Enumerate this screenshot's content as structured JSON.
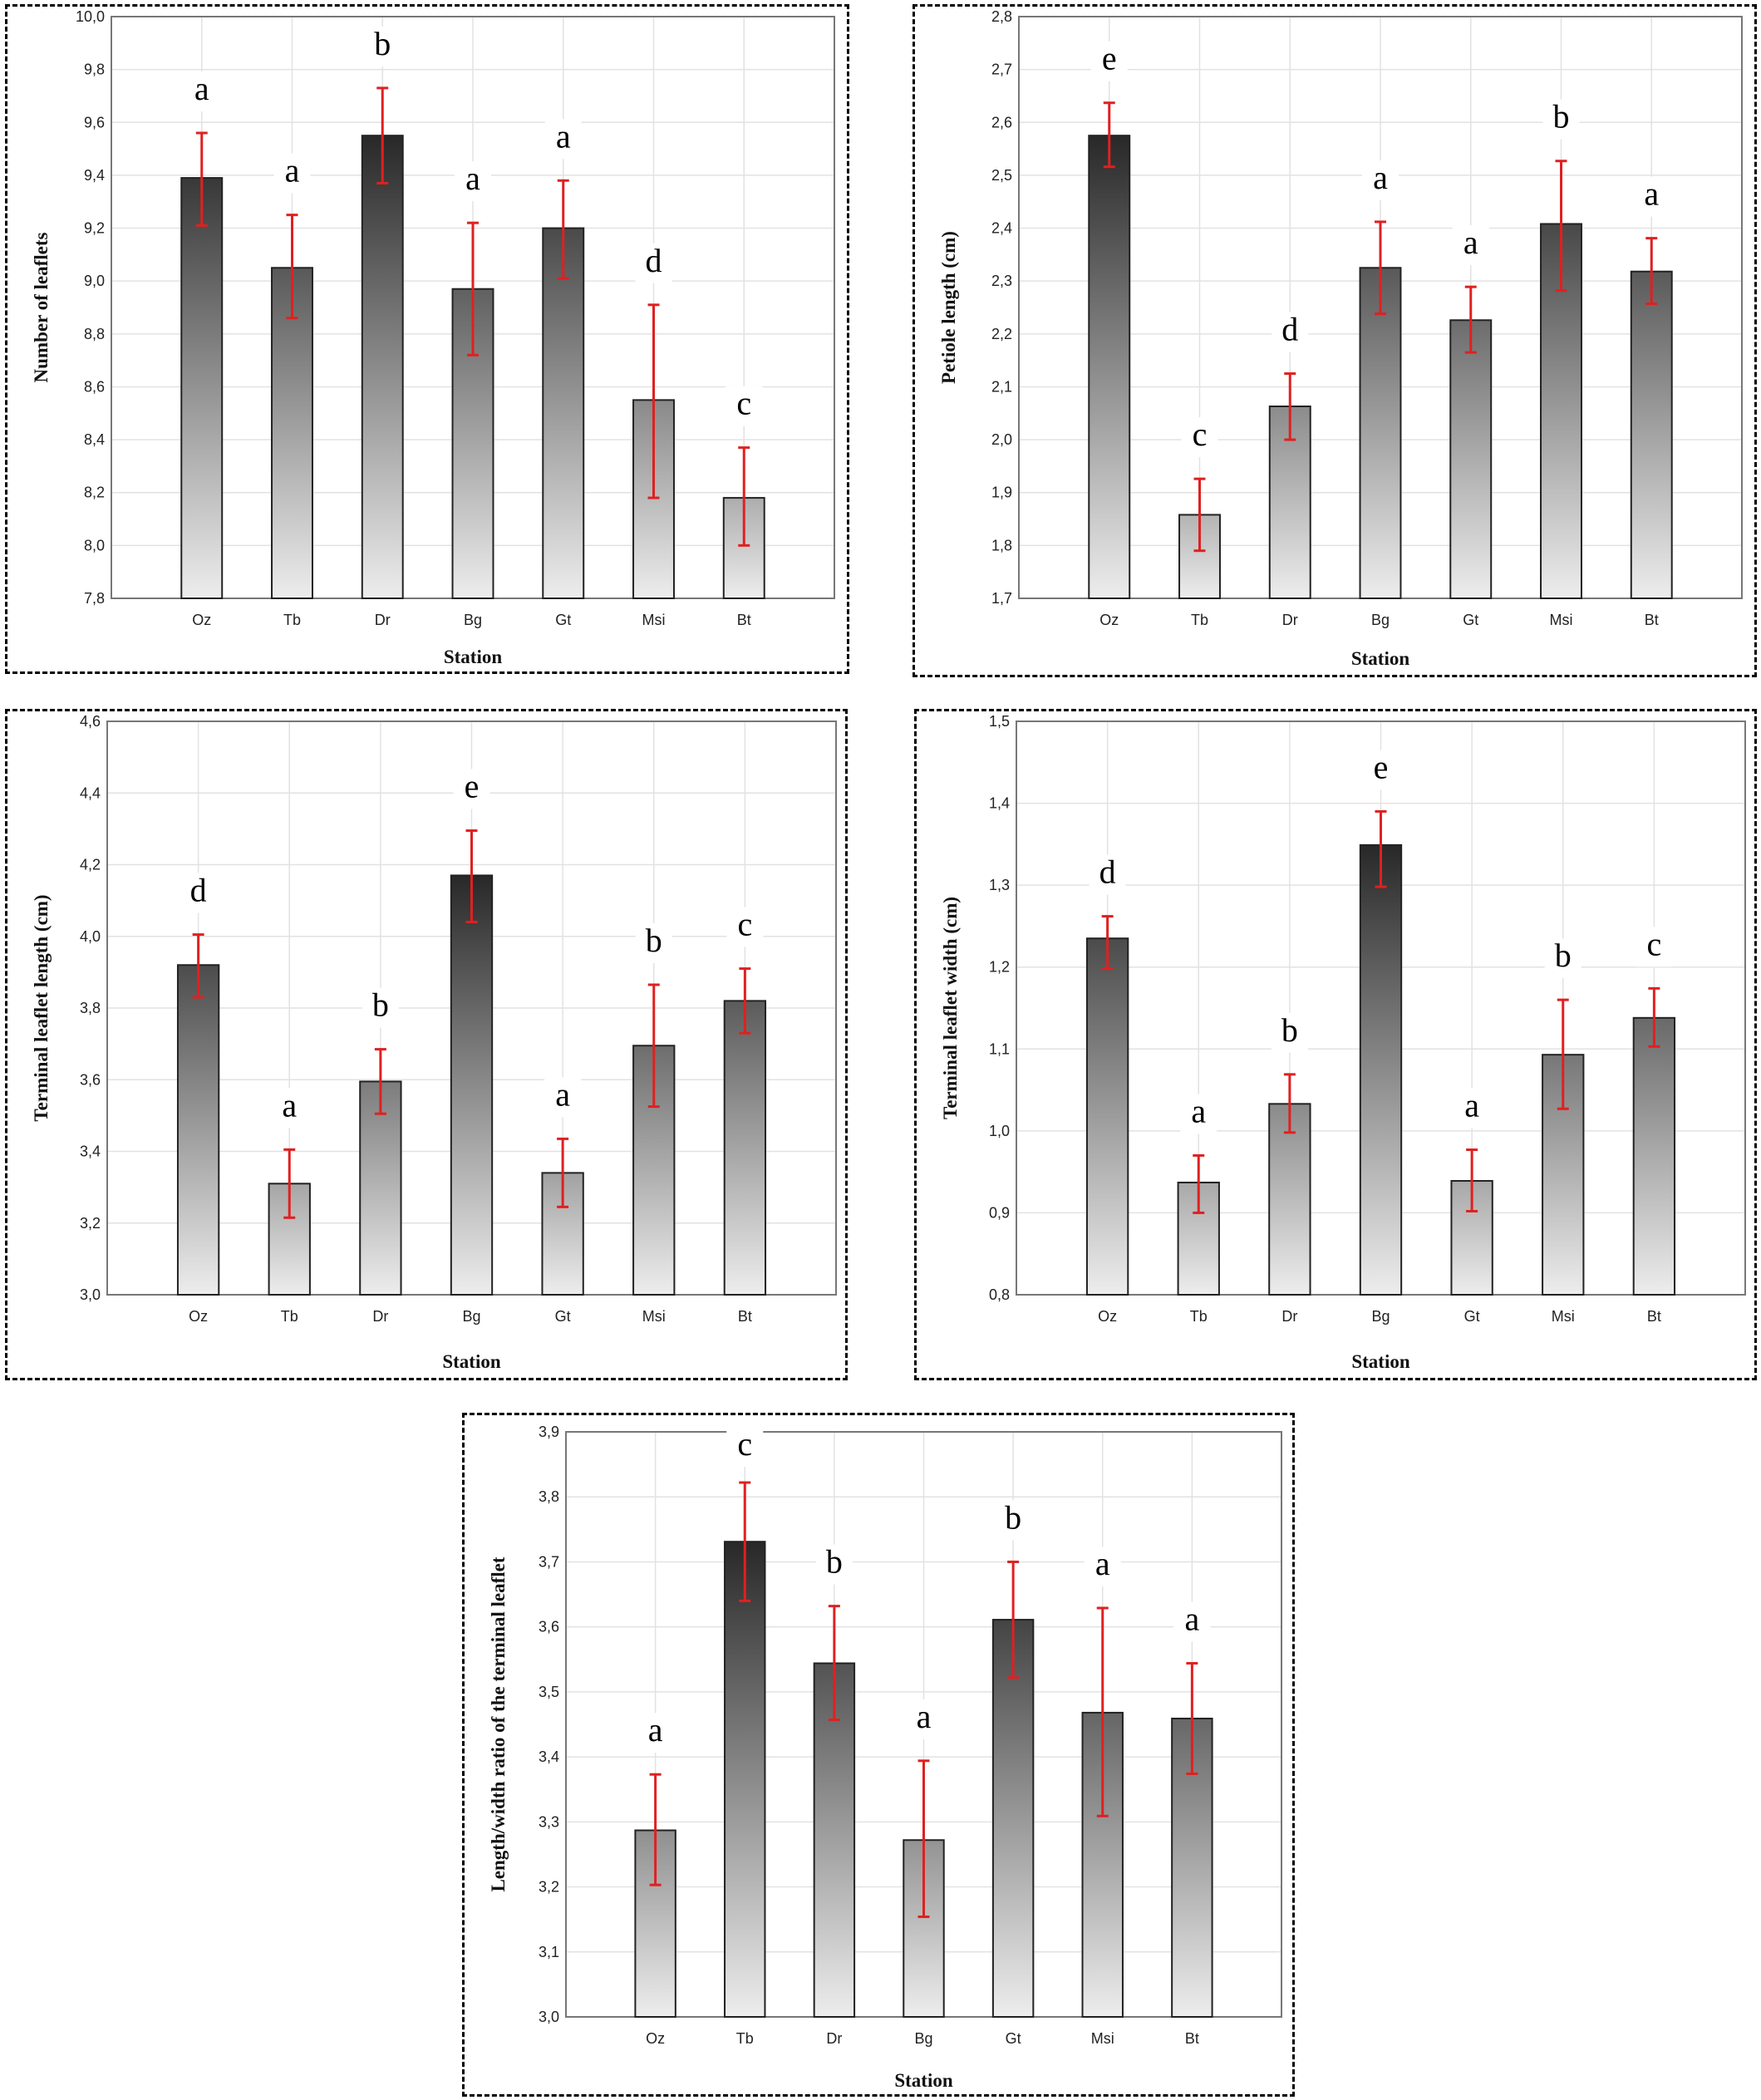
{
  "figure": {
    "categories": [
      "Oz",
      "Tb",
      "Dr",
      "Bg",
      "Gt",
      "Msi",
      "Bt"
    ],
    "xlabel": "Station"
  },
  "chart_data": [
    {
      "id": "leaflets",
      "type": "bar",
      "ylabel": "Number of leaflets",
      "xlabel": "Station",
      "categories": [
        "Oz",
        "Tb",
        "Dr",
        "Bg",
        "Gt",
        "Msi",
        "Bt"
      ],
      "values": [
        9.39,
        9.05,
        9.55,
        8.97,
        9.2,
        8.55,
        8.18
      ],
      "err_low": [
        9.21,
        8.86,
        9.37,
        8.72,
        9.01,
        8.18,
        8.0
      ],
      "err_high": [
        9.56,
        9.25,
        9.73,
        9.22,
        9.38,
        8.91,
        8.37
      ],
      "letters": [
        "a",
        "a",
        "b",
        "a",
        "a",
        "d",
        "c"
      ],
      "ylim": [
        7.8,
        10.0
      ],
      "yticks": [
        "7,8",
        "8,0",
        "8,2",
        "8,4",
        "8,6",
        "8,8",
        "9,0",
        "9,2",
        "9,4",
        "9,6",
        "9,8",
        "10,0"
      ],
      "grid": true
    },
    {
      "id": "petiole",
      "type": "bar",
      "ylabel": "Petiole length (cm)",
      "xlabel": "Station",
      "categories": [
        "Oz",
        "Tb",
        "Dr",
        "Bg",
        "Gt",
        "Msi",
        "Bt"
      ],
      "values": [
        2.575,
        1.858,
        2.063,
        2.325,
        2.226,
        2.408,
        2.318
      ],
      "err_low": [
        2.516,
        1.79,
        2.0,
        2.238,
        2.165,
        2.282,
        2.257
      ],
      "err_high": [
        2.637,
        1.926,
        2.125,
        2.412,
        2.289,
        2.527,
        2.381
      ],
      "letters": [
        "e",
        "c",
        "d",
        "a",
        "a",
        "b",
        "a"
      ],
      "ylim": [
        1.7,
        2.8
      ],
      "yticks": [
        "1,7",
        "1,8",
        "1,9",
        "2,0",
        "2,1",
        "2,2",
        "2,3",
        "2,4",
        "2,5",
        "2,6",
        "2,7",
        "2,8"
      ],
      "grid": true
    },
    {
      "id": "tl_length",
      "type": "bar",
      "ylabel": "Terminal leaflet length (cm)",
      "xlabel": "Station",
      "categories": [
        "Oz",
        "Tb",
        "Dr",
        "Bg",
        "Gt",
        "Msi",
        "Bt"
      ],
      "values": [
        3.92,
        3.31,
        3.595,
        4.17,
        3.34,
        3.695,
        3.82
      ],
      "err_low": [
        3.83,
        3.215,
        3.505,
        4.04,
        3.245,
        3.525,
        3.73
      ],
      "err_high": [
        4.005,
        3.405,
        3.685,
        4.295,
        3.435,
        3.865,
        3.91
      ],
      "letters": [
        "d",
        "a",
        "b",
        "e",
        "a",
        "b",
        "c"
      ],
      "ylim": [
        3.0,
        4.6
      ],
      "yticks": [
        "3,0",
        "3,2",
        "3,4",
        "3,6",
        "3,8",
        "4,0",
        "4,2",
        "4,4",
        "4,6"
      ],
      "grid": true
    },
    {
      "id": "tl_width",
      "type": "bar",
      "ylabel": "Terminal leaflet width (cm)",
      "xlabel": "Station",
      "categories": [
        "Oz",
        "Tb",
        "Dr",
        "Bg",
        "Gt",
        "Msi",
        "Bt"
      ],
      "values": [
        1.235,
        0.937,
        1.033,
        1.349,
        0.939,
        1.093,
        1.138
      ],
      "err_low": [
        1.198,
        0.9,
        0.998,
        1.298,
        0.902,
        1.027,
        1.103
      ],
      "err_high": [
        1.262,
        0.97,
        1.069,
        1.39,
        0.977,
        1.16,
        1.174
      ],
      "letters": [
        "d",
        "a",
        "b",
        "e",
        "a",
        "b",
        "c"
      ],
      "ylim": [
        0.8,
        1.5
      ],
      "yticks": [
        "0,8",
        "0,9",
        "1,0",
        "1,1",
        "1,2",
        "1,3",
        "1,4",
        "1,5"
      ],
      "grid": true
    },
    {
      "id": "lw_ratio",
      "type": "bar",
      "ylabel": "Length/width ratio of the terminal leaflet",
      "xlabel": "Station",
      "categories": [
        "Oz",
        "Tb",
        "Dr",
        "Bg",
        "Gt",
        "Msi",
        "Bt"
      ],
      "values": [
        3.287,
        3.731,
        3.544,
        3.272,
        3.611,
        3.468,
        3.459
      ],
      "err_low": [
        3.203,
        3.64,
        3.457,
        3.154,
        3.522,
        3.309,
        3.374
      ],
      "err_high": [
        3.373,
        3.822,
        3.632,
        3.394,
        3.7,
        3.629,
        3.544
      ],
      "letters": [
        "a",
        "c",
        "b",
        "a",
        "b",
        "a",
        "a"
      ],
      "ylim": [
        3.0,
        3.9
      ],
      "yticks": [
        "3,0",
        "3,1",
        "3,2",
        "3,3",
        "3,4",
        "3,5",
        "3,6",
        "3,7",
        "3,8",
        "3,9"
      ],
      "grid": true
    }
  ]
}
